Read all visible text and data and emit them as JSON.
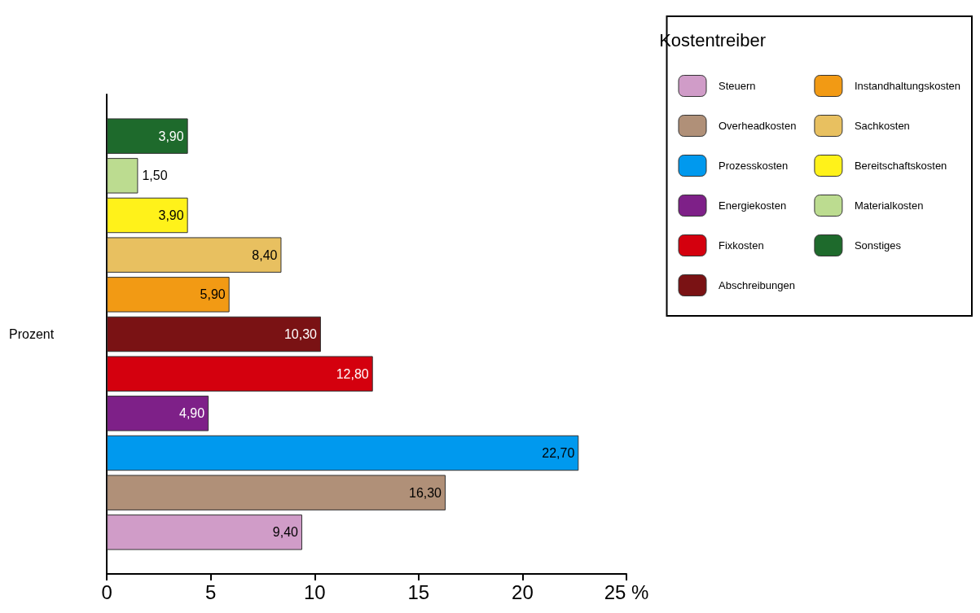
{
  "chart_data": {
    "type": "bar",
    "orientation": "horizontal",
    "ylabel": "Prozent",
    "legend_title": "Kostentreiber",
    "legend": "top right",
    "grid": false,
    "categories": [
      null
    ],
    "xlim": [
      0,
      25
    ],
    "xticks": [
      0,
      5,
      10,
      15,
      20,
      {
        "value": 25,
        "label": "25 %"
      }
    ],
    "series": [
      {
        "name": "Steuern",
        "color": "#d09cc8",
        "values": [
          9.4
        ],
        "value_labels": [
          "9,40"
        ]
      },
      {
        "name": "Overheadkosten",
        "color": "#b09078",
        "values": [
          16.3
        ],
        "value_labels": [
          "16,30"
        ]
      },
      {
        "name": "Prozesskosten",
        "color": "#0099ee",
        "values": [
          22.7
        ],
        "value_labels": [
          "22,70"
        ]
      },
      {
        "name": "Energiekosten",
        "color": "#7e2088",
        "values": [
          4.9
        ],
        "value_labels": [
          "4,90"
        ]
      },
      {
        "name": "Fixkosten",
        "color": "#d4000e",
        "values": [
          12.8
        ],
        "value_labels": [
          "12,80"
        ]
      },
      {
        "name": "Abschreibungen",
        "color": "#7a1214",
        "values": [
          10.3
        ],
        "value_labels": [
          "10,30"
        ]
      },
      {
        "name": "Instandhaltungskosten",
        "color": "#f29a14",
        "values": [
          5.9
        ],
        "value_labels": [
          "5,90"
        ]
      },
      {
        "name": "Sachkosten",
        "color": "#e8c060",
        "values": [
          8.4
        ],
        "value_labels": [
          "8,40"
        ]
      },
      {
        "name": "Bereitschaftskosten",
        "color": "#fff21a",
        "values": [
          3.9
        ],
        "value_labels": [
          "3,90"
        ]
      },
      {
        "name": "Materialkosten",
        "color": "#bcdc90",
        "values": [
          1.5
        ],
        "value_labels": [
          "1,50"
        ]
      },
      {
        "name": "Sonstiges",
        "color": "#1e6a2c",
        "values": [
          3.9
        ],
        "value_labels": [
          "3,90"
        ]
      }
    ]
  }
}
